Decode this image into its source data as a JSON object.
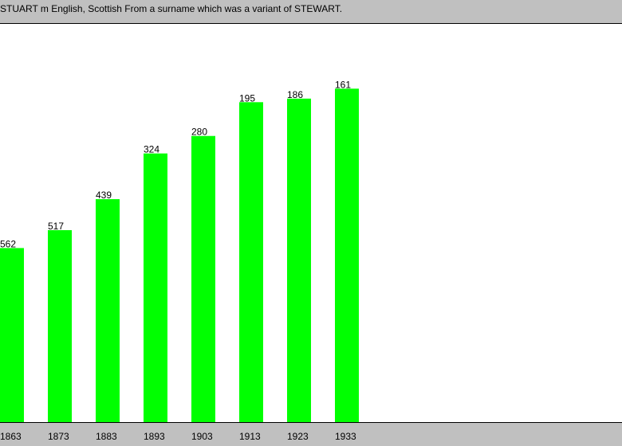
{
  "header": {
    "text": "STUART m English, Scottish From a surname which was a variant of STEWART."
  },
  "chart_data": {
    "type": "bar",
    "title": "",
    "xlabel": "",
    "ylabel": "",
    "categories": [
      "1863",
      "1873",
      "1883",
      "1893",
      "1903",
      "1913",
      "1923",
      "1933"
    ],
    "rank": [
      562,
      517,
      439,
      324,
      280,
      195,
      186,
      161
    ],
    "bar_color": "#00ff00",
    "grid": false,
    "legend": "none"
  }
}
